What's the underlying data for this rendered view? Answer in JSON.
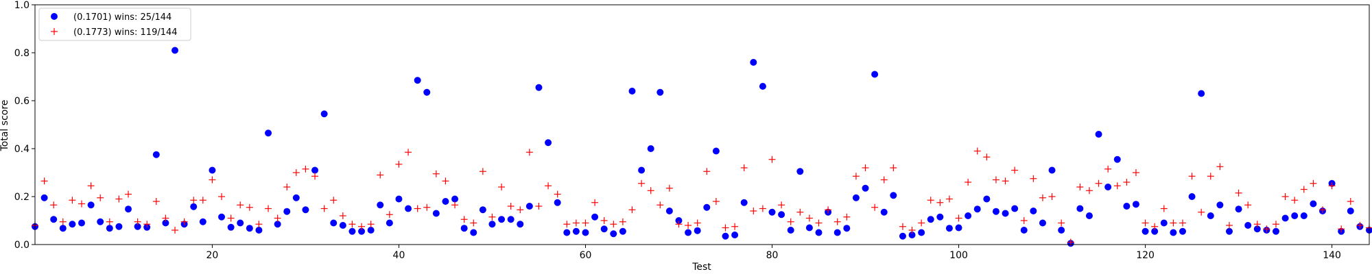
{
  "chart_data": {
    "type": "scatter",
    "title": "",
    "xlabel": "Test",
    "ylabel": "Total score",
    "xlim": [
      1,
      144
    ],
    "ylim": [
      0.0,
      1.0
    ],
    "xticks": [
      20,
      40,
      60,
      80,
      100,
      120,
      140
    ],
    "yticks": [
      0.0,
      0.2,
      0.4,
      0.6,
      0.8,
      1.0
    ],
    "grid": false,
    "legend_position": "top-left",
    "x": [
      1,
      2,
      3,
      4,
      5,
      6,
      7,
      8,
      9,
      10,
      11,
      12,
      13,
      14,
      15,
      16,
      17,
      18,
      19,
      20,
      21,
      22,
      23,
      24,
      25,
      26,
      27,
      28,
      29,
      30,
      31,
      32,
      33,
      34,
      35,
      36,
      37,
      38,
      39,
      40,
      41,
      42,
      43,
      44,
      45,
      46,
      47,
      48,
      49,
      50,
      51,
      52,
      53,
      54,
      55,
      56,
      57,
      58,
      59,
      60,
      61,
      62,
      63,
      64,
      65,
      66,
      67,
      68,
      69,
      70,
      71,
      72,
      73,
      74,
      75,
      76,
      77,
      78,
      79,
      80,
      81,
      82,
      83,
      84,
      85,
      86,
      87,
      88,
      89,
      90,
      91,
      92,
      93,
      94,
      95,
      96,
      97,
      98,
      99,
      100,
      101,
      102,
      103,
      104,
      105,
      106,
      107,
      108,
      109,
      110,
      111,
      112,
      113,
      114,
      115,
      116,
      117,
      118,
      119,
      120,
      121,
      122,
      123,
      124,
      125,
      126,
      127,
      128,
      129,
      130,
      131,
      132,
      133,
      134,
      135,
      136,
      137,
      138,
      139,
      140,
      141,
      142,
      143,
      144
    ],
    "series": [
      {
        "name": "(0.1701) wins: 25/144",
        "marker": "circle",
        "color": "#0000ff",
        "values": [
          0.075,
          0.195,
          0.105,
          0.068,
          0.085,
          0.09,
          0.165,
          0.095,
          0.068,
          0.075,
          0.148,
          0.075,
          0.072,
          0.375,
          0.09,
          0.81,
          0.085,
          0.158,
          0.095,
          0.31,
          0.115,
          0.072,
          0.09,
          0.068,
          0.06,
          0.465,
          0.085,
          0.138,
          0.195,
          0.145,
          0.31,
          0.545,
          0.09,
          0.08,
          0.055,
          0.055,
          0.06,
          0.165,
          0.09,
          0.19,
          0.15,
          0.685,
          0.635,
          0.13,
          0.18,
          0.19,
          0.068,
          0.05,
          0.145,
          0.085,
          0.105,
          0.105,
          0.085,
          0.16,
          0.655,
          0.425,
          0.175,
          0.05,
          0.055,
          0.05,
          0.115,
          0.065,
          0.045,
          0.055,
          0.64,
          0.31,
          0.4,
          0.635,
          0.14,
          0.1,
          0.05,
          0.058,
          0.155,
          0.39,
          0.035,
          0.04,
          0.175,
          0.76,
          0.66,
          0.135,
          0.125,
          0.06,
          0.305,
          0.07,
          0.05,
          0.135,
          0.05,
          0.068,
          0.195,
          0.235,
          0.71,
          0.135,
          0.205,
          0.035,
          0.04,
          0.05,
          0.105,
          0.115,
          0.068,
          0.07,
          0.12,
          0.148,
          0.19,
          0.138,
          0.13,
          0.15,
          0.06,
          0.14,
          0.09,
          0.31,
          0.06,
          0.005,
          0.15,
          0.12,
          0.46,
          0.24,
          0.355,
          0.16,
          0.168,
          0.055,
          0.055,
          0.09,
          0.05,
          0.055,
          0.2,
          0.63,
          0.12,
          0.165,
          0.055,
          0.148,
          0.08,
          0.065,
          0.06,
          0.055,
          0.11,
          0.12,
          0.12,
          0.17,
          0.14,
          0.255,
          0.055,
          0.14,
          0.075,
          0.06
        ]
      },
      {
        "name": "(0.1773) wins: 119/144",
        "marker": "plus",
        "color": "#ff0000",
        "values": [
          0.08,
          0.265,
          0.165,
          0.095,
          0.185,
          0.17,
          0.245,
          0.195,
          0.095,
          0.19,
          0.21,
          0.095,
          0.085,
          0.18,
          0.11,
          0.06,
          0.095,
          0.185,
          0.185,
          0.27,
          0.2,
          0.11,
          0.165,
          0.155,
          0.085,
          0.15,
          0.11,
          0.24,
          0.3,
          0.315,
          0.285,
          0.15,
          0.185,
          0.12,
          0.085,
          0.075,
          0.085,
          0.29,
          0.125,
          0.335,
          0.385,
          0.15,
          0.155,
          0.295,
          0.265,
          0.165,
          0.105,
          0.09,
          0.305,
          0.115,
          0.24,
          0.16,
          0.145,
          0.385,
          0.16,
          0.245,
          0.21,
          0.085,
          0.09,
          0.09,
          0.175,
          0.1,
          0.085,
          0.095,
          0.145,
          0.255,
          0.225,
          0.165,
          0.235,
          0.085,
          0.08,
          0.09,
          0.305,
          0.18,
          0.07,
          0.075,
          0.32,
          0.14,
          0.15,
          0.355,
          0.165,
          0.095,
          0.135,
          0.11,
          0.09,
          0.145,
          0.095,
          0.115,
          0.285,
          0.32,
          0.155,
          0.27,
          0.32,
          0.075,
          0.06,
          0.09,
          0.185,
          0.175,
          0.19,
          0.11,
          0.26,
          0.39,
          0.365,
          0.27,
          0.265,
          0.31,
          0.1,
          0.275,
          0.195,
          0.2,
          0.09,
          0.01,
          0.24,
          0.225,
          0.255,
          0.315,
          0.245,
          0.26,
          0.3,
          0.09,
          0.075,
          0.15,
          0.09,
          0.09,
          0.285,
          0.135,
          0.285,
          0.325,
          0.08,
          0.215,
          0.165,
          0.085,
          0.065,
          0.085,
          0.2,
          0.185,
          0.23,
          0.255,
          0.145,
          0.245,
          0.065,
          0.18,
          0.08,
          0.07
        ]
      }
    ]
  }
}
